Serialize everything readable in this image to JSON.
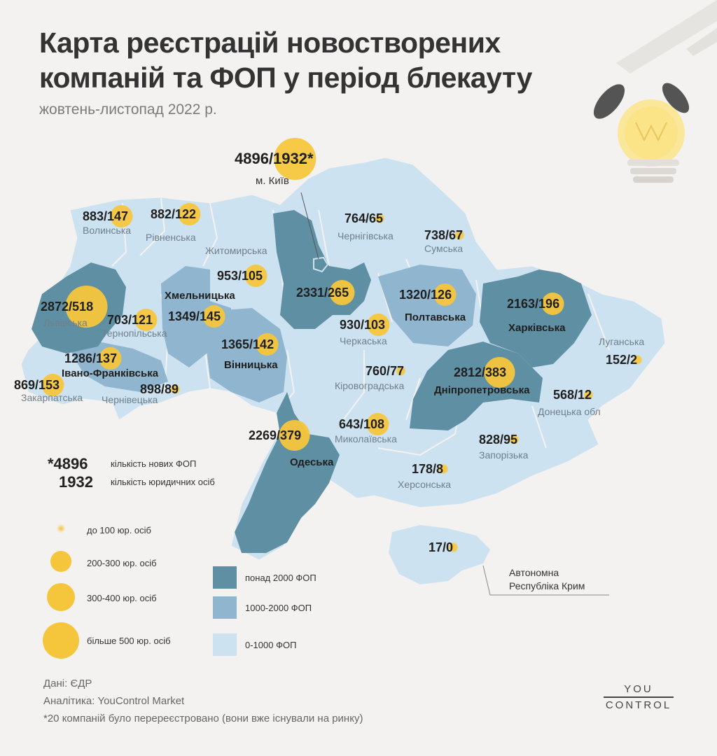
{
  "title": "Карта реєстрацій новостворених компаній та ФОП у період блекауту",
  "subtitle": "жовтень-листопад 2022 р.",
  "regions": [
    {
      "name": "Волинська",
      "fop": 883,
      "legal": 147,
      "label": "883/147",
      "tier": "light"
    },
    {
      "name": "Рівненська",
      "fop": 882,
      "legal": 122,
      "label": "882/122",
      "tier": "light"
    },
    {
      "name": "Житомирська",
      "fop": null,
      "legal": null,
      "label": "",
      "tier": "light"
    },
    {
      "name": "м. Київ",
      "fop": 4896,
      "legal": 1932,
      "label": "4896/1932*",
      "tier": "dark"
    },
    {
      "name": "Чернігівська",
      "fop": 764,
      "legal": 65,
      "label": "764/65",
      "tier": "light"
    },
    {
      "name": "Сумська",
      "fop": 738,
      "legal": 67,
      "label": "738/67",
      "tier": "light"
    },
    {
      "name": "Львівська",
      "fop": 2872,
      "legal": 518,
      "label": "2872/518",
      "tier": "dark"
    },
    {
      "name": "Тернопільська",
      "fop": 703,
      "legal": 121,
      "label": "703/121",
      "tier": "light"
    },
    {
      "name": "Хмельницька",
      "fop": 1349,
      "legal": 145,
      "label": "1349/145",
      "tier": "medium"
    },
    {
      "name": "",
      "fop": 953,
      "legal": 105,
      "label": "953/105",
      "tier": "light"
    },
    {
      "name": "",
      "fop": 2331,
      "legal": 265,
      "label": "2331/265",
      "tier": "dark"
    },
    {
      "name": "Полтавська",
      "fop": 1320,
      "legal": 126,
      "label": "1320/126",
      "tier": "medium"
    },
    {
      "name": "Харківська",
      "fop": 2163,
      "legal": 196,
      "label": "2163/196",
      "tier": "dark"
    },
    {
      "name": "Луганська",
      "fop": 152,
      "legal": 2,
      "label": "152/2",
      "tier": "light"
    },
    {
      "name": "Вінницька",
      "fop": 1365,
      "legal": 142,
      "label": "1365/142",
      "tier": "medium"
    },
    {
      "name": "Черкаська",
      "fop": 930,
      "legal": 103,
      "label": "930/103",
      "tier": "light"
    },
    {
      "name": "Івано-Франківська",
      "fop": 1286,
      "legal": 137,
      "label": "1286/137",
      "tier": "medium"
    },
    {
      "name": "Закарпатська",
      "fop": 869,
      "legal": 153,
      "label": "869/153",
      "tier": "light"
    },
    {
      "name": "Чернівецька",
      "fop": 898,
      "legal": 89,
      "label": "898/89",
      "tier": "light"
    },
    {
      "name": "Кіровоградська",
      "fop": 760,
      "legal": 77,
      "label": "760/77",
      "tier": "light"
    },
    {
      "name": "Дніпропетровська",
      "fop": 2812,
      "legal": 383,
      "label": "2812/383",
      "tier": "dark"
    },
    {
      "name": "Донецька обл",
      "fop": 568,
      "legal": 12,
      "label": "568/12",
      "tier": "light"
    },
    {
      "name": "Одеська",
      "fop": 2269,
      "legal": 379,
      "label": "2269/379",
      "tier": "dark"
    },
    {
      "name": "Миколаївська",
      "fop": 643,
      "legal": 108,
      "label": "643/108",
      "tier": "light"
    },
    {
      "name": "Запорізька",
      "fop": 828,
      "legal": 95,
      "label": "828/95",
      "tier": "light"
    },
    {
      "name": "Херсонська",
      "fop": 178,
      "legal": 8,
      "label": "178/8",
      "tier": "light"
    },
    {
      "name": "Автономна Республіка Крим",
      "fop": 17,
      "legal": 0,
      "label": "17/0",
      "tier": "light"
    }
  ],
  "crimea_label": [
    "Автономна",
    "Республіка Крим"
  ],
  "legend": {
    "example_fop": "*4896",
    "example_fop_text": "кількість нових ФОП",
    "example_legal": "1932",
    "example_legal_text": "кількість юридичних осіб",
    "circles": [
      "до 100 юр. осіб",
      "200-300 юр. осіб",
      "300-400 юр. осіб",
      "більше 500 юр. осіб"
    ],
    "tiers": [
      "понад 2000 ФОП",
      "1000-2000 ФОП",
      "0-1000 ФОП"
    ]
  },
  "colors": {
    "dark": "#5f8fa3",
    "medium": "#8fb5cf",
    "light": "#cde2f0",
    "circle": "#f5c63c",
    "background": "#f3f2f1"
  },
  "footer": {
    "source": "Дані: ЄДР",
    "analytics": "Аналітика: YouControl Market",
    "note": "*20 компаній було перереєстровано (вони вже існували на ринку)"
  },
  "logo": {
    "top": "YOU",
    "bottom": "CONTROL"
  }
}
